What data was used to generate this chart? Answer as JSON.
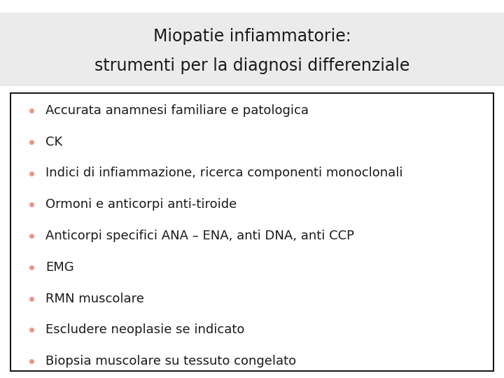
{
  "title_line1": "Miopatie infiammatorie:",
  "title_line2": "strumenti per la diagnosi differenziale",
  "title_bg_color": "#ebebeb",
  "content_bg_color": "#ffffff",
  "border_color": "#1a1a1a",
  "bullet_color": "#e8958a",
  "text_color": "#1a1a1a",
  "title_fontsize": 17,
  "bullet_fontsize": 13,
  "fig_width": 7.2,
  "fig_height": 5.4,
  "dpi": 100,
  "items": [
    "Accurata anamnesi familiare e patologica",
    "CK",
    "Indici di infiammazione, ricerca componenti monoclonali",
    "Ormoni e anticorpi anti-tiroide",
    "Anticorpi specifici ANA – ENA, anti DNA, anti CCP",
    "EMG",
    "RMN muscolare",
    "Escludere neoplasie se indicato",
    "Biopsia muscolare su tessuto congelato"
  ]
}
